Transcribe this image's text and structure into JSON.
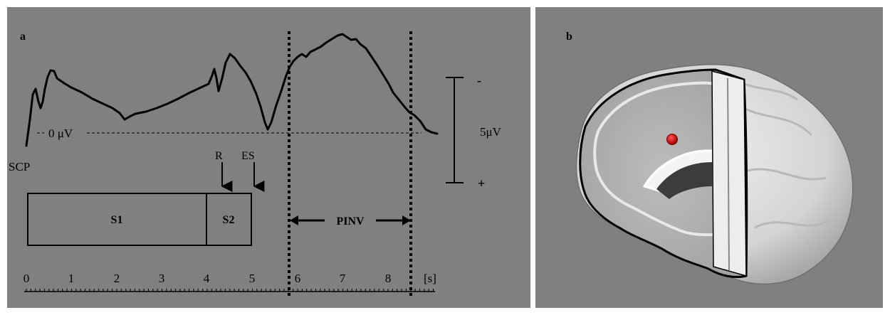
{
  "panel_a": {
    "label": "a",
    "signal_label": "SCP",
    "baseline_label": "0 μV",
    "event_labels": [
      "R",
      "ES"
    ],
    "stimuli": [
      "S1",
      "S2"
    ],
    "interval_label": "PINV",
    "scale": {
      "top": "-",
      "value": "5μV",
      "bottom": "+"
    },
    "axis": {
      "ticks": [
        "0",
        "1",
        "2",
        "3",
        "4",
        "5",
        "6",
        "7",
        "8"
      ],
      "unit": "[s]"
    }
  },
  "panel_b": {
    "label": "b",
    "marker_color": "#cc0000"
  },
  "colors": {
    "background": "#808080",
    "ink": "#000000"
  }
}
